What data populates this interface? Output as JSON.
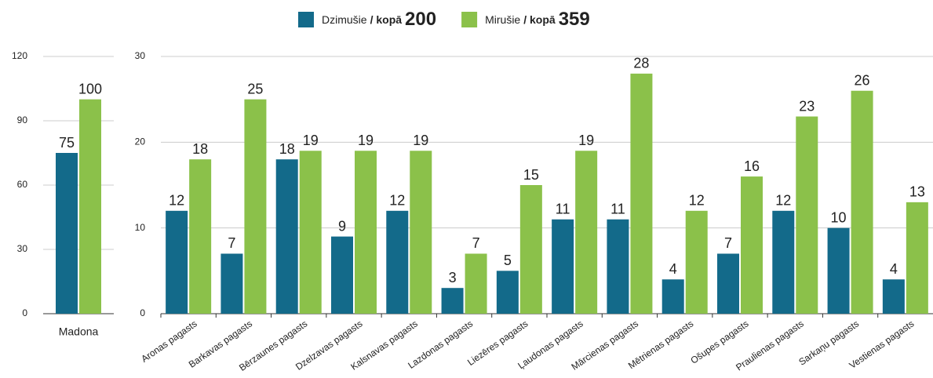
{
  "chart_data": [
    {
      "type": "bar",
      "categories": [
        "Madona"
      ],
      "series": [
        {
          "name": "Dzimušie",
          "color": "#136a8a",
          "values": [
            75
          ]
        },
        {
          "name": "Mirušie",
          "color": "#8bc14a",
          "values": [
            100
          ]
        }
      ],
      "ylim": [
        0,
        120
      ],
      "yticks": [
        0,
        30,
        60,
        90,
        120
      ],
      "grid": true
    },
    {
      "type": "bar",
      "categories": [
        "Aronas pagasts",
        "Barkavas pagasts",
        "Bērzaunes pagasts",
        "Dzelzavas pagasts",
        "Kalsnavas pagasts",
        "Lazdonas pagasts",
        "Liezēres pagasts",
        "Ļaudonas pagasts",
        "Mārcienas pagasts",
        "Mētrienas pagasts",
        "Ošupes pagasts",
        "Praulienas pagasts",
        "Sarkaņu pagasts",
        "Vestienas pagasts"
      ],
      "series": [
        {
          "name": "Dzimušie",
          "color": "#136a8a",
          "values": [
            12,
            7,
            18,
            9,
            12,
            3,
            5,
            11,
            11,
            4,
            7,
            12,
            10,
            4
          ]
        },
        {
          "name": "Mirušie",
          "color": "#8bc14a",
          "values": [
            18,
            25,
            19,
            19,
            19,
            7,
            15,
            19,
            28,
            12,
            16,
            23,
            26,
            13
          ]
        }
      ],
      "ylim": [
        0,
        30
      ],
      "yticks": [
        0,
        10,
        20,
        30
      ],
      "grid": true
    }
  ],
  "legend": [
    {
      "suffix": "/ kopā",
      "total": 200
    },
    {
      "suffix": "/ kopā",
      "total": 359
    }
  ]
}
